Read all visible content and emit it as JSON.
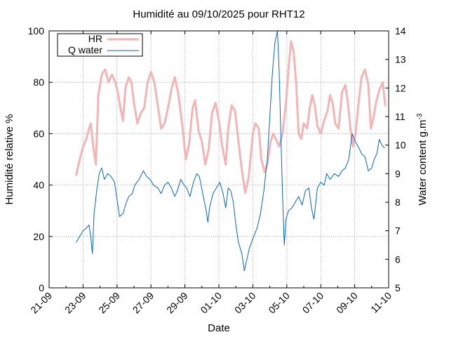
{
  "chart_data": {
    "type": "line",
    "title": "Humidité au 09/10/2025 pour RHT12",
    "xlabel": "Date",
    "ylabel_left": "Humidité relative %",
    "ylabel_right_main": "Water content g.m",
    "ylabel_right_sup": "-3",
    "x_ticks": [
      "21-09",
      "23-09",
      "25-09",
      "27-09",
      "29-09",
      "01-10",
      "03-10",
      "05-10",
      "07-10",
      "09-10",
      "11-10"
    ],
    "y_left_ticks": [
      "0",
      "20",
      "40",
      "60",
      "80",
      "100"
    ],
    "y_right_ticks": [
      "5",
      "6",
      "7",
      "8",
      "9",
      "10",
      "11",
      "12",
      "13",
      "14"
    ],
    "ylim_left": [
      0,
      100
    ],
    "ylim_right": [
      5,
      14
    ],
    "x_range_days": [
      0,
      20
    ],
    "x_units": "days since 21-09",
    "grid": true,
    "legend_position": "top-left",
    "series": [
      {
        "name": "HR",
        "axis": "left",
        "color": "#f5b4b4",
        "points": [
          [
            1.6,
            44
          ],
          [
            1.8,
            50
          ],
          [
            2.0,
            55
          ],
          [
            2.2,
            58
          ],
          [
            2.35,
            62
          ],
          [
            2.45,
            64
          ],
          [
            2.6,
            55
          ],
          [
            2.75,
            48
          ],
          [
            2.9,
            75
          ],
          [
            3.1,
            83
          ],
          [
            3.3,
            85
          ],
          [
            3.5,
            80
          ],
          [
            3.7,
            83
          ],
          [
            3.9,
            80
          ],
          [
            4.05,
            76
          ],
          [
            4.2,
            70
          ],
          [
            4.35,
            65
          ],
          [
            4.5,
            78
          ],
          [
            4.7,
            82
          ],
          [
            4.85,
            80
          ],
          [
            5.0,
            72
          ],
          [
            5.2,
            64
          ],
          [
            5.4,
            68
          ],
          [
            5.6,
            70
          ],
          [
            5.8,
            80
          ],
          [
            6.0,
            84
          ],
          [
            6.2,
            80
          ],
          [
            6.4,
            71
          ],
          [
            6.6,
            62
          ],
          [
            6.8,
            64
          ],
          [
            7.0,
            70
          ],
          [
            7.2,
            77
          ],
          [
            7.4,
            82
          ],
          [
            7.6,
            76
          ],
          [
            7.85,
            63
          ],
          [
            8.05,
            50
          ],
          [
            8.25,
            56
          ],
          [
            8.45,
            70
          ],
          [
            8.6,
            73
          ],
          [
            8.8,
            61
          ],
          [
            9.0,
            57
          ],
          [
            9.2,
            48
          ],
          [
            9.4,
            54
          ],
          [
            9.6,
            68
          ],
          [
            9.8,
            72
          ],
          [
            10.0,
            65
          ],
          [
            10.2,
            55
          ],
          [
            10.4,
            48
          ],
          [
            10.55,
            62
          ],
          [
            10.75,
            71
          ],
          [
            10.95,
            69
          ],
          [
            11.15,
            57
          ],
          [
            11.35,
            46
          ],
          [
            11.55,
            37
          ],
          [
            11.75,
            43
          ],
          [
            12.0,
            60
          ],
          [
            12.15,
            64
          ],
          [
            12.35,
            62
          ],
          [
            12.5,
            50
          ],
          [
            12.7,
            45
          ],
          [
            12.85,
            48
          ],
          [
            13.05,
            57
          ],
          [
            13.2,
            60
          ],
          [
            13.35,
            58
          ],
          [
            13.55,
            55
          ],
          [
            13.75,
            60
          ],
          [
            13.95,
            72
          ],
          [
            14.1,
            85
          ],
          [
            14.25,
            96
          ],
          [
            14.4,
            92
          ],
          [
            14.55,
            80
          ],
          [
            14.7,
            60
          ],
          [
            14.85,
            58
          ],
          [
            15.0,
            64
          ],
          [
            15.2,
            62
          ],
          [
            15.35,
            70
          ],
          [
            15.5,
            75
          ],
          [
            15.65,
            71
          ],
          [
            15.8,
            63
          ],
          [
            16.0,
            60
          ],
          [
            16.2,
            65
          ],
          [
            16.4,
            69
          ],
          [
            16.55,
            75
          ],
          [
            16.7,
            72
          ],
          [
            16.85,
            64
          ],
          [
            17.05,
            62
          ],
          [
            17.25,
            76
          ],
          [
            17.45,
            79
          ],
          [
            17.6,
            72
          ],
          [
            17.75,
            62
          ],
          [
            17.9,
            55
          ],
          [
            18.05,
            60
          ],
          [
            18.2,
            70
          ],
          [
            18.4,
            82
          ],
          [
            18.6,
            85
          ],
          [
            18.8,
            79
          ],
          [
            18.95,
            62
          ],
          [
            19.1,
            66
          ],
          [
            19.25,
            72
          ],
          [
            19.45,
            77
          ],
          [
            19.65,
            80
          ],
          [
            19.8,
            71
          ]
        ]
      },
      {
        "name": "Q water",
        "axis": "right",
        "color": "#0066cc",
        "points": [
          [
            1.6,
            6.6
          ],
          [
            1.8,
            6.8
          ],
          [
            2.0,
            7.0
          ],
          [
            2.2,
            7.1
          ],
          [
            2.35,
            7.2
          ],
          [
            2.45,
            6.8
          ],
          [
            2.55,
            6.2
          ],
          [
            2.65,
            7.6
          ],
          [
            2.8,
            8.4
          ],
          [
            2.95,
            9.0
          ],
          [
            3.1,
            9.2
          ],
          [
            3.25,
            8.8
          ],
          [
            3.45,
            9.0
          ],
          [
            3.65,
            8.9
          ],
          [
            3.85,
            8.7
          ],
          [
            4.0,
            8.1
          ],
          [
            4.15,
            7.5
          ],
          [
            4.35,
            7.6
          ],
          [
            4.55,
            8.0
          ],
          [
            4.7,
            8.2
          ],
          [
            4.9,
            8.3
          ],
          [
            5.05,
            8.6
          ],
          [
            5.3,
            8.8
          ],
          [
            5.55,
            9.1
          ],
          [
            5.75,
            8.9
          ],
          [
            5.95,
            8.8
          ],
          [
            6.15,
            8.6
          ],
          [
            6.4,
            8.5
          ],
          [
            6.6,
            8.3
          ],
          [
            6.8,
            8.6
          ],
          [
            7.0,
            8.7
          ],
          [
            7.2,
            8.5
          ],
          [
            7.4,
            8.2
          ],
          [
            7.55,
            8.4
          ],
          [
            7.75,
            8.8
          ],
          [
            7.95,
            8.6
          ],
          [
            8.1,
            8.5
          ],
          [
            8.3,
            8.2
          ],
          [
            8.5,
            8.7
          ],
          [
            8.7,
            9.0
          ],
          [
            8.85,
            8.9
          ],
          [
            9.05,
            8.3
          ],
          [
            9.25,
            7.7
          ],
          [
            9.35,
            7.3
          ],
          [
            9.45,
            7.8
          ],
          [
            9.65,
            8.3
          ],
          [
            9.85,
            8.5
          ],
          [
            10.05,
            8.7
          ],
          [
            10.25,
            8.3
          ],
          [
            10.4,
            7.8
          ],
          [
            10.55,
            8.5
          ],
          [
            10.7,
            8.4
          ],
          [
            10.85,
            8.0
          ],
          [
            11.0,
            7.2
          ],
          [
            11.15,
            6.6
          ],
          [
            11.35,
            6.2
          ],
          [
            11.5,
            5.6
          ],
          [
            11.65,
            6.0
          ],
          [
            11.8,
            6.4
          ],
          [
            12.05,
            6.8
          ],
          [
            12.25,
            7.1
          ],
          [
            12.45,
            7.6
          ],
          [
            12.65,
            8.4
          ],
          [
            12.85,
            9.5
          ],
          [
            13.0,
            11.0
          ],
          [
            13.15,
            12.5
          ],
          [
            13.3,
            13.6
          ],
          [
            13.45,
            14.0
          ],
          [
            13.55,
            12.6
          ],
          [
            13.65,
            10.4
          ],
          [
            13.75,
            8.2
          ],
          [
            13.85,
            6.5
          ],
          [
            13.95,
            7.4
          ],
          [
            14.1,
            7.7
          ],
          [
            14.3,
            7.8
          ],
          [
            14.5,
            8.0
          ],
          [
            14.7,
            8.2
          ],
          [
            14.9,
            7.9
          ],
          [
            15.1,
            8.4
          ],
          [
            15.3,
            8.5
          ],
          [
            15.45,
            7.8
          ],
          [
            15.6,
            7.4
          ],
          [
            15.8,
            8.5
          ],
          [
            16.0,
            8.7
          ],
          [
            16.2,
            8.6
          ],
          [
            16.35,
            9.0
          ],
          [
            16.55,
            8.8
          ],
          [
            16.8,
            9.0
          ],
          [
            17.05,
            8.9
          ],
          [
            17.25,
            9.1
          ],
          [
            17.45,
            9.2
          ],
          [
            17.65,
            9.5
          ],
          [
            17.85,
            10.4
          ],
          [
            18.05,
            10.1
          ],
          [
            18.25,
            9.9
          ],
          [
            18.4,
            9.7
          ],
          [
            18.6,
            9.6
          ],
          [
            18.8,
            9.1
          ],
          [
            19.0,
            9.2
          ],
          [
            19.15,
            9.5
          ],
          [
            19.3,
            9.7
          ],
          [
            19.45,
            10.2
          ],
          [
            19.6,
            10.0
          ],
          [
            19.75,
            9.9
          ]
        ]
      }
    ]
  }
}
